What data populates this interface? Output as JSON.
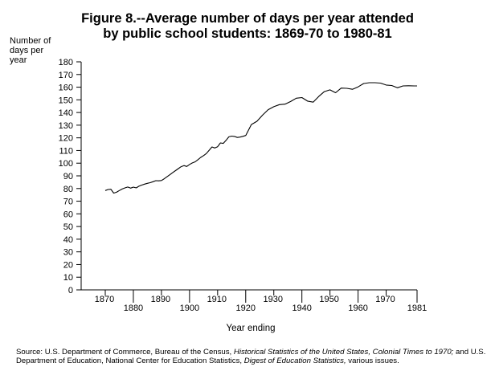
{
  "chart_data": {
    "type": "line",
    "title": [
      "Figure 8.--Average number of days per year attended",
      "by public school students:  1869-70 to 1980-81"
    ],
    "ylabel": [
      "Number of",
      "days per",
      "year"
    ],
    "xlabel": "Year ending",
    "ylim": [
      0,
      180
    ],
    "yticks": [
      0,
      10,
      20,
      30,
      40,
      50,
      60,
      70,
      80,
      90,
      100,
      110,
      120,
      130,
      140,
      150,
      160,
      170,
      180
    ],
    "xlim": [
      1865,
      1985
    ],
    "xticks": [
      {
        "value": 1870,
        "label": "1870",
        "row": 0
      },
      {
        "value": 1880,
        "label": "1880",
        "row": 1
      },
      {
        "value": 1890,
        "label": "1890",
        "row": 0
      },
      {
        "value": 1900,
        "label": "1900",
        "row": 1
      },
      {
        "value": 1910,
        "label": "1910",
        "row": 0
      },
      {
        "value": 1920,
        "label": "1920",
        "row": 1
      },
      {
        "value": 1930,
        "label": "1930",
        "row": 0
      },
      {
        "value": 1940,
        "label": "1940",
        "row": 1
      },
      {
        "value": 1950,
        "label": "1950",
        "row": 0
      },
      {
        "value": 1960,
        "label": "1960",
        "row": 1
      },
      {
        "value": 1970,
        "label": "1970",
        "row": 0
      },
      {
        "value": 1981,
        "label": "1981",
        "row": 1
      }
    ],
    "grid": false,
    "series": [
      {
        "x": [
          1870,
          1871,
          1872,
          1873,
          1874,
          1875,
          1876,
          1877,
          1878,
          1879,
          1880,
          1881,
          1882,
          1883,
          1884,
          1885,
          1886,
          1887,
          1888,
          1889,
          1890,
          1891,
          1892,
          1893,
          1894,
          1895,
          1896,
          1897,
          1898,
          1899,
          1900,
          1901,
          1902,
          1903,
          1904,
          1905,
          1906,
          1907,
          1908,
          1909,
          1910,
          1911,
          1912,
          1913,
          1914,
          1915,
          1916,
          1917,
          1918,
          1919,
          1920,
          1922,
          1924,
          1926,
          1928,
          1930,
          1932,
          1934,
          1936,
          1938,
          1940,
          1942,
          1944,
          1946,
          1948,
          1950,
          1952,
          1954,
          1956,
          1958,
          1960,
          1962,
          1964,
          1966,
          1968,
          1970,
          1972,
          1974,
          1976,
          1978,
          1980,
          1981
        ],
        "y": [
          78.4,
          79.2,
          79.4,
          76.4,
          77.1,
          78.4,
          79.6,
          80.5,
          81.2,
          80.3,
          81.1,
          80.5,
          81.8,
          82.7,
          83.5,
          84.1,
          84.6,
          85.4,
          86.2,
          86.1,
          86.3,
          87.7,
          89.3,
          90.9,
          92.6,
          94.1,
          95.7,
          97.2,
          98.1,
          97.4,
          99.0,
          100.2,
          101.1,
          102.8,
          104.6,
          106.0,
          107.6,
          110.2,
          112.8,
          112.0,
          113.0,
          116.0,
          115.6,
          118.0,
          120.8,
          121.4,
          121.1,
          120.3,
          120.6,
          121.2,
          121.9,
          130.5,
          133.1,
          137.9,
          142.2,
          144.6,
          146.2,
          146.6,
          148.7,
          151.3,
          151.8,
          149.0,
          148.2,
          152.7,
          156.5,
          157.9,
          155.6,
          159.3,
          159.1,
          158.3,
          160.2,
          162.9,
          163.5,
          163.5,
          163.2,
          161.7,
          161.3,
          159.5,
          161.0,
          161.1,
          161.0,
          161.0
        ]
      }
    ]
  },
  "source": {
    "prefix": "Source:  U.S. Department of Commerce, Bureau of the Census, ",
    "italic1": "Historical Statistics of the United States, Colonial Times to 1970;",
    "middle": " and U.S. Department of Education, National Center for Education Statistics, ",
    "italic2": "Digest of Education Statistics,",
    "suffix": " various issues."
  }
}
